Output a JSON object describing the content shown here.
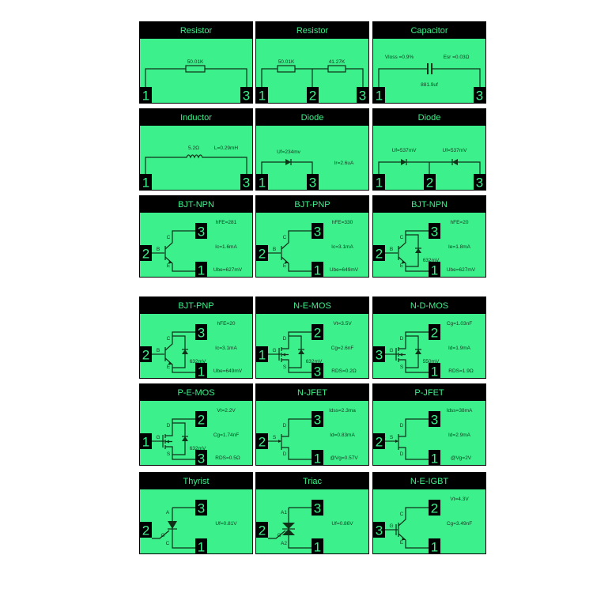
{
  "colors": {
    "screen": "#3cf08c",
    "header": "#000000",
    "header_text": "#3cf08c",
    "ink": "#103018"
  },
  "cards": [
    {
      "title": "Resistor",
      "kind": "resistor",
      "pins": [
        "1",
        "3"
      ],
      "values": [
        "50.01K"
      ]
    },
    {
      "title": "Resistor",
      "kind": "resistor2",
      "pins": [
        "1",
        "2",
        "3"
      ],
      "values": [
        "50.01K",
        "41.27K"
      ]
    },
    {
      "title": "Capacitor",
      "kind": "capacitor",
      "pins": [
        "1",
        "3"
      ],
      "values": [
        "Vloss =0.9%",
        "Esr =0.03Ω",
        "881.9uf"
      ]
    },
    {
      "title": "Inductor",
      "kind": "inductor",
      "pins": [
        "1",
        "3"
      ],
      "values": [
        "5.2Ω",
        "L=0.29mH"
      ]
    },
    {
      "title": "Diode",
      "kind": "diode",
      "pins": [
        "1",
        "3"
      ],
      "values": [
        "Uf=234mv",
        "Ir=2.6uA"
      ]
    },
    {
      "title": "Diode",
      "kind": "diode2",
      "pins": [
        "1",
        "2",
        "3"
      ],
      "values": [
        "Uf=537mV",
        "Uf=537mV"
      ]
    },
    {
      "title": "BJT-NPN",
      "kind": "bjt",
      "pins": [
        "2",
        "3",
        "1"
      ],
      "terminals": [
        "B",
        "C",
        "E"
      ],
      "values": [
        "hFE=281",
        "Ic=1.6mA",
        "Ube=627mV"
      ]
    },
    {
      "title": "BJT-PNP",
      "kind": "bjt",
      "pins": [
        "2",
        "3",
        "1"
      ],
      "terminals": [
        "B",
        "C",
        "E"
      ],
      "values": [
        "hFE=330",
        "Ic=3.1mA",
        "Ube=649mV"
      ]
    },
    {
      "title": "BJT-NPN",
      "kind": "bjt",
      "diode": "632mV",
      "pins": [
        "2",
        "3",
        "1"
      ],
      "terminals": [
        "B",
        "C",
        "E"
      ],
      "values": [
        "hFE=20",
        "Ie=1.8mA",
        "Ube=627mV"
      ]
    },
    {
      "title": "BJT-PNP",
      "kind": "bjt",
      "diode": "632mV",
      "pins": [
        "2",
        "3",
        "1"
      ],
      "terminals": [
        "B",
        "C",
        "E"
      ],
      "values": [
        "hFE=20",
        "Ic=3.1mA",
        "Ube=649mV"
      ]
    },
    {
      "title": "N-E-MOS",
      "kind": "mos",
      "diode": "632mV",
      "pins": [
        "1",
        "2",
        "3"
      ],
      "terminals": [
        "G",
        "D",
        "S"
      ],
      "values": [
        "Vt=3.5V",
        "Cg=2.6nF",
        "RDS=0.2Ω"
      ]
    },
    {
      "title": "N-D-MOS",
      "kind": "mos",
      "diode": "550mV",
      "pins": [
        "3",
        "2",
        "1"
      ],
      "terminals": [
        "G",
        "D",
        "S"
      ],
      "values": [
        "Cg=1.03nF",
        "Id=1.9mA",
        "RDS=1.9Ω"
      ]
    },
    {
      "title": "P-E-MOS",
      "kind": "mos",
      "diode": "632mV",
      "pins": [
        "1",
        "2",
        "3"
      ],
      "terminals": [
        "G",
        "D",
        "S"
      ],
      "values": [
        "Vt=2.2V",
        "Cg=1.74nF",
        "RDS=0.5Ω"
      ]
    },
    {
      "title": "N-JFET",
      "kind": "jfet",
      "pins": [
        "2",
        "3",
        "1"
      ],
      "terminals": [
        "S",
        "D",
        "D"
      ],
      "values": [
        "Idss=2.3ma",
        "Id=0.83mA",
        "@Vg=0.57V"
      ]
    },
    {
      "title": "P-JFET",
      "kind": "jfet",
      "pins": [
        "2",
        "3",
        "1"
      ],
      "terminals": [
        "S",
        "D",
        "D"
      ],
      "values": [
        "Idss=38mA",
        "Id=2.9mA",
        "@Vg=2V"
      ]
    },
    {
      "title": "Thyrist",
      "kind": "thyristor",
      "pins": [
        "2",
        "3",
        "1"
      ],
      "terminals": [
        "G",
        "A",
        "C"
      ],
      "values": [
        "",
        "Uf=0.81V",
        ""
      ]
    },
    {
      "title": "Triac",
      "kind": "triac",
      "pins": [
        "2",
        "3",
        "1"
      ],
      "terminals": [
        "G",
        "A1",
        "A2"
      ],
      "values": [
        "",
        "Uf=0.86V",
        ""
      ]
    },
    {
      "title": "N-E-IGBT",
      "kind": "igbt",
      "pins": [
        "3",
        "2",
        "1"
      ],
      "terminals": [
        "G",
        "C",
        "E"
      ],
      "values": [
        "Vt=4.3V",
        "Cg=3.49nF",
        ""
      ]
    }
  ]
}
